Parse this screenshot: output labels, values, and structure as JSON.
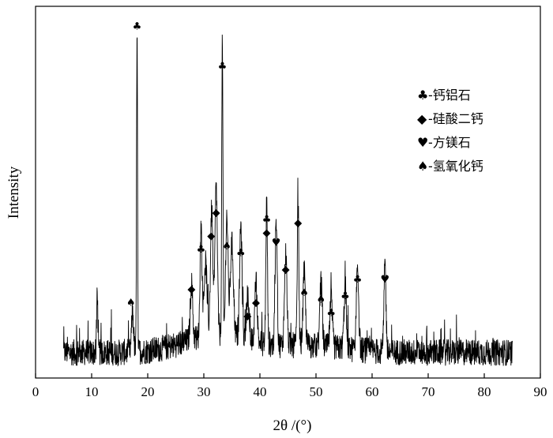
{
  "chart_data": {
    "type": "line",
    "xlabel": "2θ /(°)",
    "ylabel": "Intensity",
    "xlim": [
      0,
      90
    ],
    "ylim": [
      0,
      100
    ],
    "xticks": [
      0,
      10,
      20,
      30,
      40,
      50,
      60,
      70,
      80,
      90
    ],
    "grid": false,
    "legend_position": "top-right",
    "series_color": "#000000",
    "legend": [
      {
        "symbol": "club",
        "glyph": "♣",
        "label": "-钙铝石"
      },
      {
        "symbol": "diamond",
        "glyph": "◆",
        "label": "-硅酸二钙"
      },
      {
        "symbol": "heart",
        "glyph": "♥",
        "label": "-方镁石"
      },
      {
        "symbol": "spade",
        "glyph": "♠",
        "label": "-氢氧化钙"
      }
    ],
    "range": [
      5,
      85
    ],
    "baseline": 6,
    "noise_amplitude": 4,
    "peaks": [
      {
        "x": 11.0,
        "y": 20,
        "w": 0.12
      },
      {
        "x": 17.3,
        "y": 12,
        "w": 0.25
      },
      {
        "x": 18.1,
        "y": 100,
        "w": 0.12
      },
      {
        "x": 27.8,
        "y": 17,
        "w": 0.3
      },
      {
        "x": 29.5,
        "y": 33,
        "w": 0.25
      },
      {
        "x": 30.3,
        "y": 22,
        "w": 0.4
      },
      {
        "x": 31.4,
        "y": 38,
        "w": 0.3
      },
      {
        "x": 32.2,
        "y": 45,
        "w": 0.3
      },
      {
        "x": 33.3,
        "y": 88,
        "w": 0.15
      },
      {
        "x": 34.1,
        "y": 36,
        "w": 0.3
      },
      {
        "x": 35.0,
        "y": 28,
        "w": 0.4
      },
      {
        "x": 36.6,
        "y": 34,
        "w": 0.3
      },
      {
        "x": 37.8,
        "y": 14,
        "w": 0.3
      },
      {
        "x": 39.3,
        "y": 18,
        "w": 0.3
      },
      {
        "x": 41.2,
        "y": 43,
        "w": 0.2
      },
      {
        "x": 42.9,
        "y": 37,
        "w": 0.25
      },
      {
        "x": 44.6,
        "y": 28,
        "w": 0.3
      },
      {
        "x": 46.8,
        "y": 42,
        "w": 0.2
      },
      {
        "x": 47.9,
        "y": 22,
        "w": 0.3
      },
      {
        "x": 50.9,
        "y": 19,
        "w": 0.3
      },
      {
        "x": 52.7,
        "y": 14,
        "w": 0.3
      },
      {
        "x": 55.2,
        "y": 18,
        "w": 0.3
      },
      {
        "x": 57.4,
        "y": 25,
        "w": 0.3
      },
      {
        "x": 62.3,
        "y": 26,
        "w": 0.25
      }
    ],
    "annotations": [
      {
        "x": 18.1,
        "y": 103,
        "symbol": "♣"
      },
      {
        "x": 33.3,
        "y": 91,
        "symbol": "♣"
      },
      {
        "x": 17.0,
        "y": 20,
        "symbol": "♠"
      },
      {
        "x": 27.8,
        "y": 24,
        "symbol": "◆"
      },
      {
        "x": 29.5,
        "y": 36,
        "symbol": "♣"
      },
      {
        "x": 31.3,
        "y": 40,
        "symbol": "◆"
      },
      {
        "x": 32.2,
        "y": 47,
        "symbol": "◆"
      },
      {
        "x": 34.1,
        "y": 37,
        "symbol": "♠"
      },
      {
        "x": 36.6,
        "y": 35,
        "symbol": "♣"
      },
      {
        "x": 37.8,
        "y": 16,
        "symbol": "◆"
      },
      {
        "x": 39.3,
        "y": 20,
        "symbol": "◆"
      },
      {
        "x": 41.2,
        "y": 45,
        "symbol": "♣"
      },
      {
        "x": 41.2,
        "y": 41,
        "symbol": "◆"
      },
      {
        "x": 42.9,
        "y": 38,
        "symbol": "♥"
      },
      {
        "x": 44.6,
        "y": 30,
        "symbol": "◆"
      },
      {
        "x": 46.8,
        "y": 44,
        "symbol": "◆"
      },
      {
        "x": 47.9,
        "y": 23,
        "symbol": "♠"
      },
      {
        "x": 50.9,
        "y": 21,
        "symbol": "♠"
      },
      {
        "x": 52.7,
        "y": 17,
        "symbol": "♣"
      },
      {
        "x": 55.2,
        "y": 22,
        "symbol": "♣"
      },
      {
        "x": 57.4,
        "y": 27,
        "symbol": "♣"
      },
      {
        "x": 62.3,
        "y": 27,
        "symbol": "♥"
      }
    ]
  }
}
